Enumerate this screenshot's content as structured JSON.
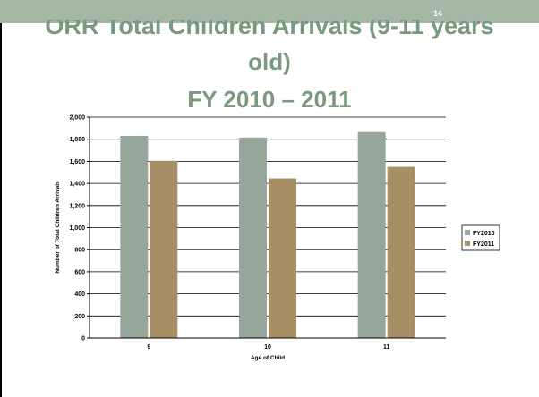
{
  "slide": {
    "number": "14",
    "title_line1": "ORR Total Children Arrivals (9-11 years",
    "title_line2": "old)",
    "title_line3": "FY 2010 – 2011"
  },
  "colors": {
    "header_band": "#a7b7a5",
    "title": "#7a9a7f",
    "fy2010": "#96a69a",
    "fy2011": "#a78f65"
  },
  "chart_data": {
    "type": "bar",
    "categories": [
      "9",
      "10",
      "11"
    ],
    "series": [
      {
        "name": "FY2010",
        "values": [
          1830,
          1815,
          1865
        ],
        "color": "#96a69a"
      },
      {
        "name": "FY2011",
        "values": [
          1605,
          1445,
          1550
        ],
        "color": "#a78f65"
      }
    ],
    "ylim": [
      0,
      2000
    ],
    "yticks": [
      0,
      200,
      400,
      600,
      800,
      1000,
      1200,
      1400,
      1600,
      1800,
      2000
    ],
    "ytick_labels": [
      "0",
      "200",
      "400",
      "600",
      "800",
      "1,000",
      "1,200",
      "1,400",
      "1,600",
      "1,800",
      "2,000"
    ],
    "xlabel": "Age of Child",
    "ylabel": "Number of Total Children Arrivals",
    "grid": true,
    "legend_position": "right"
  }
}
